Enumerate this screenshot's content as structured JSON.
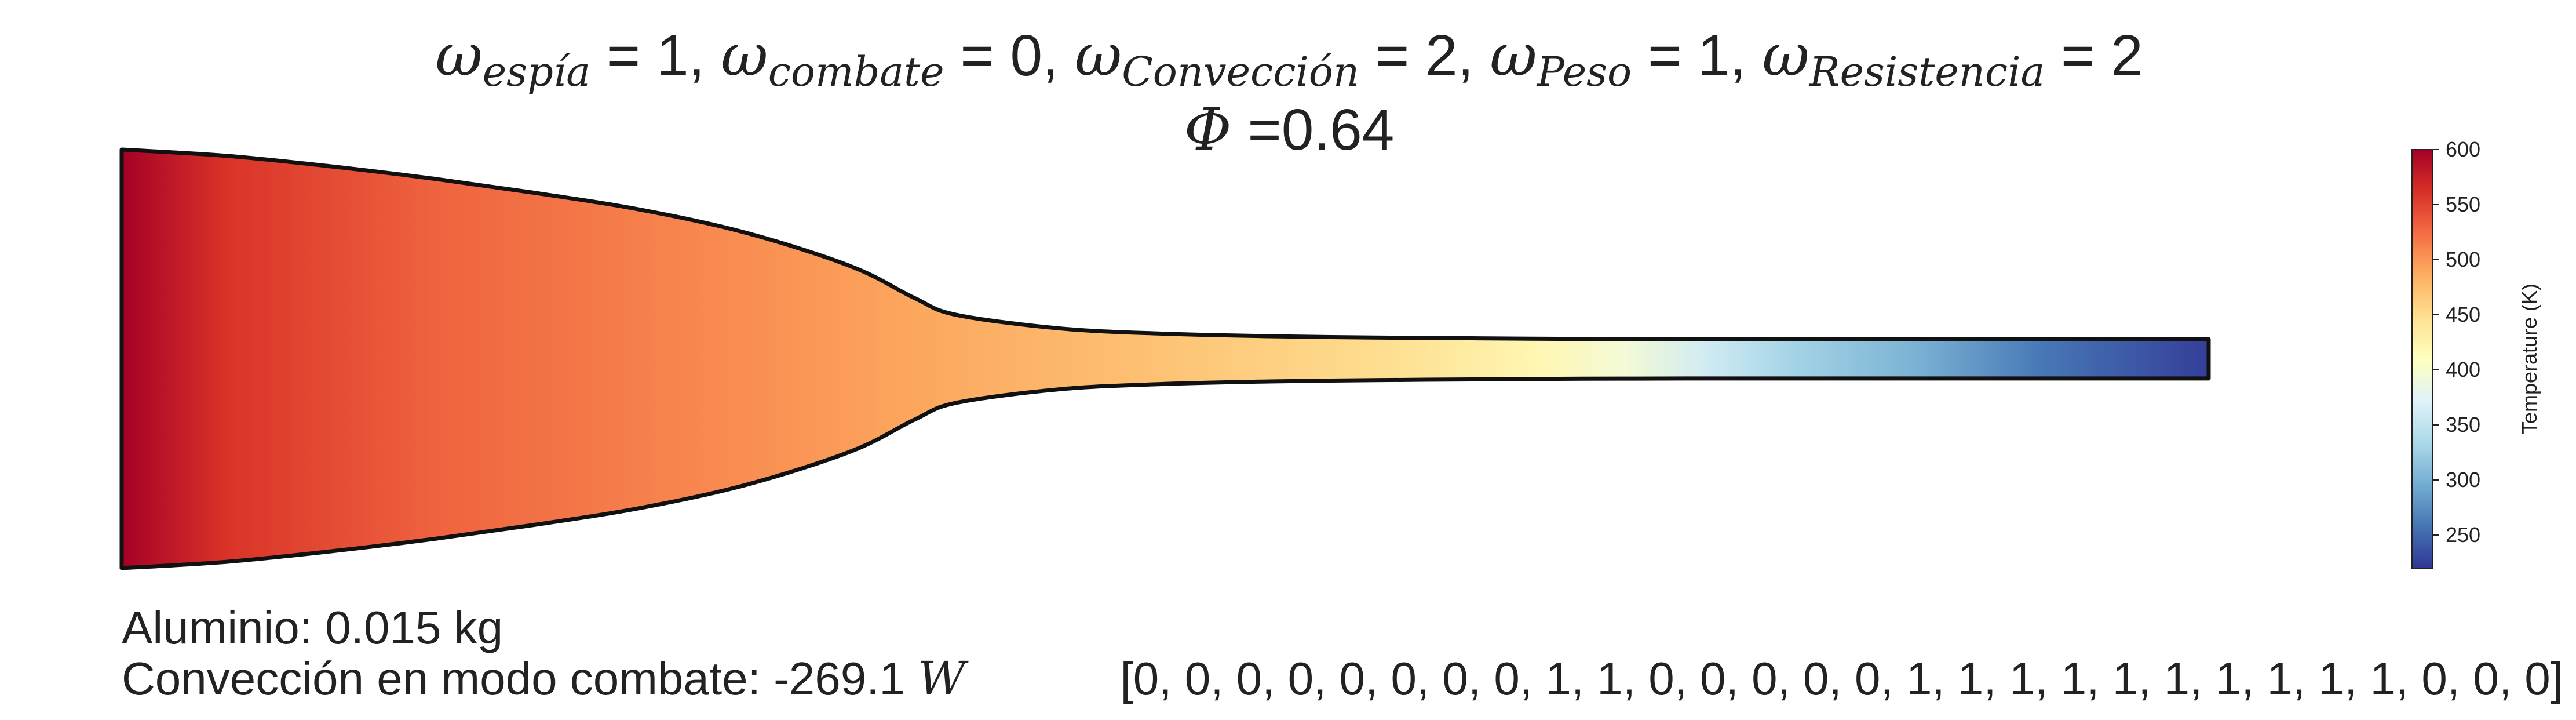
{
  "chart_data": {
    "type": "heatmap",
    "title": {
      "terms": [
        {
          "symbol": "ω",
          "subscript": "espía",
          "value": "1"
        },
        {
          "symbol": "ω",
          "subscript": "combate",
          "value": "0"
        },
        {
          "symbol": "ω",
          "subscript": "Convección",
          "value": "2"
        },
        {
          "symbol": "ω",
          "subscript": "Peso",
          "value": "1"
        },
        {
          "symbol": "ω",
          "subscript": "Resistencia",
          "value": "2"
        }
      ],
      "phi_symbol": "Φ",
      "phi_text": " =0.64"
    },
    "fin_profile": {
      "x": [
        0.0,
        0.05,
        0.1,
        0.15,
        0.2,
        0.25,
        0.3,
        0.35,
        0.38,
        0.4,
        0.45,
        0.5,
        0.55,
        0.6,
        0.65,
        0.7,
        0.75,
        0.8,
        0.85,
        0.9,
        0.95,
        1.0
      ],
      "half_thickness": [
        1.0,
        0.97,
        0.92,
        0.86,
        0.79,
        0.71,
        0.6,
        0.44,
        0.29,
        0.21,
        0.145,
        0.12,
        0.108,
        0.102,
        0.098,
        0.095,
        0.094,
        0.094,
        0.094,
        0.094,
        0.094,
        0.094
      ]
    },
    "temperature_K": {
      "x": [
        0.0,
        0.05,
        0.15,
        0.3,
        0.38,
        0.5,
        0.6,
        0.68,
        0.72,
        0.76,
        0.8,
        0.86,
        0.92,
        1.0
      ],
      "values": [
        600,
        560,
        530,
        505,
        490,
        470,
        450,
        420,
        395,
        360,
        330,
        300,
        260,
        225
      ]
    },
    "colorbar": {
      "label": "Temperature (K)",
      "min": 220,
      "max": 600,
      "ticks": [
        "250",
        "300",
        "350",
        "400",
        "450",
        "500",
        "550",
        "600"
      ],
      "colormap": "RdYlBu_r",
      "colors": [
        "#313695",
        "#4575b4",
        "#74add1",
        "#abd9e9",
        "#e0f3f8",
        "#ffffbf",
        "#fee090",
        "#fdae61",
        "#f46d43",
        "#d73027",
        "#a50026"
      ]
    },
    "annotations": {
      "material": "Aluminio: 0.015 kg",
      "convection_prefix": "Convección en modo combate: -269.1 ",
      "convection_unit": "W",
      "config_vector": "[0, 0, 0, 0, 0, 0, 0, 0, 1, 1, 0, 0, 0, 0, 0, 1, 1, 1, 1, 1, 1, 1, 1, 1, 1, 0, 0, 0]"
    }
  }
}
